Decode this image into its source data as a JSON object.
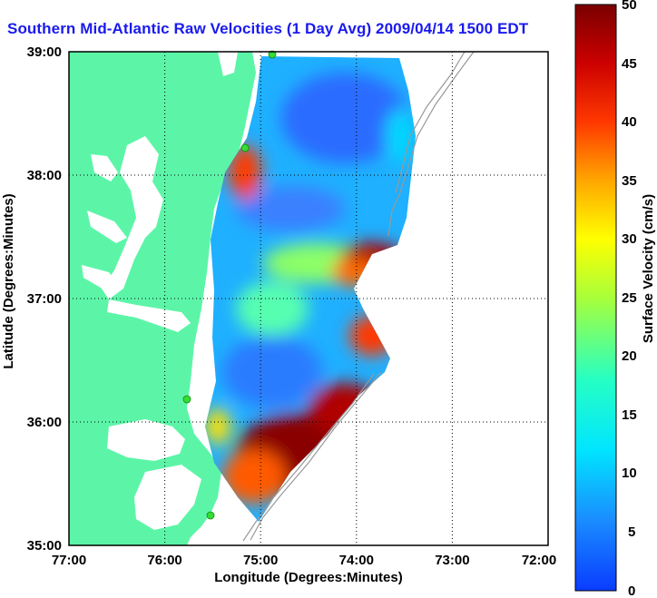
{
  "title": "Southern Mid-Atlantic Raw Velocities (1 Day Avg) 2009/04/14 1500 EDT",
  "x_axis": {
    "label": "Longitude (Degrees:Minutes)",
    "ticks": [
      "77:00",
      "76:00",
      "75:00",
      "74:00",
      "73:00",
      "72:00"
    ]
  },
  "y_axis": {
    "label": "Latitude (Degrees:Minutes)",
    "ticks": [
      "39:00",
      "38:00",
      "37:00",
      "36:00",
      "35:00"
    ]
  },
  "colorbar": {
    "label": "Surface Velocity (cm/s)",
    "ticks": [
      "50",
      "45",
      "40",
      "35",
      "30",
      "25",
      "20",
      "15",
      "10",
      "5",
      "0"
    ],
    "min": 0,
    "max": 50,
    "colormap": "jet"
  },
  "colors": {
    "land": "#5cf5a8",
    "water": "#ffffff",
    "title": "#1a1aee",
    "site_marker": "#33dd33"
  },
  "grid": "dotted"
}
